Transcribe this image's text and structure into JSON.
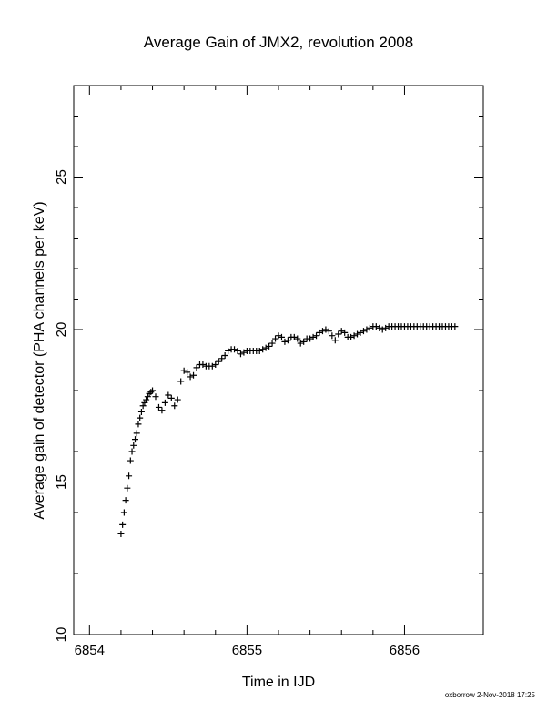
{
  "chart_data": {
    "type": "scatter",
    "title": "Average Gain of JMX2, revolution 2008",
    "xlabel": "Time in IJD",
    "ylabel": "Average gain of detector (PHA channels per keV)",
    "xlim": [
      6853.9,
      6856.5
    ],
    "ylim": [
      10,
      28
    ],
    "x_ticks": [
      "6854",
      "6855",
      "6856"
    ],
    "y_ticks": [
      "10",
      "15",
      "20",
      "25"
    ],
    "x_tick_values": [
      6854,
      6855,
      6856
    ],
    "y_tick_values": [
      10,
      15,
      20,
      25
    ],
    "grid": false,
    "marker": "+",
    "color": "#000000",
    "series": [
      {
        "x": [
          6854.2,
          6854.21,
          6854.22,
          6854.23,
          6854.24,
          6854.25,
          6854.26,
          6854.27,
          6854.28,
          6854.29,
          6854.3,
          6854.31,
          6854.32,
          6854.33,
          6854.34,
          6854.35,
          6854.36,
          6854.37,
          6854.38,
          6854.39,
          6854.4,
          6854.42,
          6854.44,
          6854.46,
          6854.48,
          6854.5,
          6854.52,
          6854.54,
          6854.56,
          6854.58,
          6854.6,
          6854.62,
          6854.64,
          6854.66,
          6854.68,
          6854.7,
          6854.72,
          6854.74,
          6854.76,
          6854.78,
          6854.8,
          6854.82,
          6854.84,
          6854.86,
          6854.88,
          6854.9,
          6854.92,
          6854.94,
          6854.96,
          6854.98,
          6855.0,
          6855.02,
          6855.04,
          6855.06,
          6855.08,
          6855.1,
          6855.12,
          6855.14,
          6855.16,
          6855.18,
          6855.2,
          6855.22,
          6855.24,
          6855.26,
          6855.28,
          6855.3,
          6855.32,
          6855.34,
          6855.36,
          6855.38,
          6855.4,
          6855.42,
          6855.44,
          6855.46,
          6855.48,
          6855.5,
          6855.52,
          6855.54,
          6855.56,
          6855.58,
          6855.6,
          6855.62,
          6855.64,
          6855.66,
          6855.68,
          6855.7,
          6855.72,
          6855.74,
          6855.76,
          6855.78,
          6855.8,
          6855.82,
          6855.84,
          6855.86,
          6855.88,
          6855.9,
          6855.92,
          6855.94,
          6855.96,
          6855.98,
          6856.0,
          6856.02,
          6856.04,
          6856.06,
          6856.08,
          6856.1,
          6856.12,
          6856.14,
          6856.16,
          6856.18,
          6856.2,
          6856.22,
          6856.24,
          6856.26,
          6856.28,
          6856.3,
          6856.32
        ],
        "y": [
          13.3,
          13.6,
          14.0,
          14.4,
          14.8,
          15.2,
          15.7,
          16.0,
          16.2,
          16.4,
          16.6,
          16.9,
          17.1,
          17.3,
          17.5,
          17.6,
          17.7,
          17.8,
          17.9,
          17.95,
          18.0,
          17.8,
          17.45,
          17.35,
          17.6,
          17.85,
          17.75,
          17.5,
          17.7,
          18.3,
          18.65,
          18.6,
          18.45,
          18.5,
          18.75,
          18.85,
          18.85,
          18.8,
          18.8,
          18.8,
          18.85,
          18.95,
          19.05,
          19.15,
          19.3,
          19.35,
          19.35,
          19.3,
          19.2,
          19.25,
          19.3,
          19.3,
          19.3,
          19.3,
          19.3,
          19.35,
          19.4,
          19.45,
          19.55,
          19.7,
          19.8,
          19.75,
          19.6,
          19.65,
          19.75,
          19.75,
          19.7,
          19.55,
          19.6,
          19.7,
          19.7,
          19.75,
          19.8,
          19.9,
          19.95,
          20.0,
          19.95,
          19.8,
          19.65,
          19.85,
          19.95,
          19.9,
          19.75,
          19.75,
          19.8,
          19.85,
          19.9,
          19.95,
          20.0,
          20.05,
          20.1,
          20.1,
          20.05,
          20.0,
          20.05,
          20.1,
          20.1,
          20.1,
          20.1,
          20.1,
          20.1,
          20.1,
          20.1,
          20.1,
          20.1,
          20.1,
          20.1,
          20.1,
          20.1,
          20.1,
          20.1,
          20.1,
          20.1,
          20.1,
          20.1,
          20.1,
          20.1
        ]
      }
    ]
  },
  "footer": {
    "credit": "oxborrow 2-Nov-2018 17:25"
  }
}
